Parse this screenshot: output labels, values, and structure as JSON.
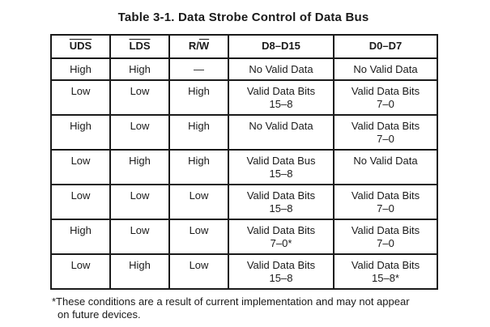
{
  "title": "Table 3-1. Data Strobe Control of Data Bus",
  "table": {
    "columns": [
      {
        "segments": [
          {
            "text": "UDS",
            "overline": true
          }
        ]
      },
      {
        "segments": [
          {
            "text": "LDS",
            "overline": true
          }
        ]
      },
      {
        "segments": [
          {
            "text": "R/",
            "overline": false
          },
          {
            "text": "W",
            "overline": true
          }
        ]
      },
      {
        "segments": [
          {
            "text": "D8–D15",
            "overline": false
          }
        ]
      },
      {
        "segments": [
          {
            "text": "D0–D7",
            "overline": false
          }
        ]
      }
    ],
    "rows": [
      {
        "cells": [
          [
            "High"
          ],
          [
            "High"
          ],
          [
            "—"
          ],
          [
            "No Valid Data"
          ],
          [
            "No Valid Data"
          ]
        ]
      },
      {
        "cells": [
          [
            "Low"
          ],
          [
            "Low"
          ],
          [
            "High"
          ],
          [
            "Valid Data Bits",
            "15–8"
          ],
          [
            "Valid Data Bits",
            "7–0"
          ]
        ]
      },
      {
        "cells": [
          [
            "High"
          ],
          [
            "Low"
          ],
          [
            "High"
          ],
          [
            "No Valid Data"
          ],
          [
            "Valid Data Bits",
            "7–0"
          ]
        ]
      },
      {
        "cells": [
          [
            "Low"
          ],
          [
            "High"
          ],
          [
            "High"
          ],
          [
            "Valid Data Bus",
            "15–8"
          ],
          [
            "No Valid Data"
          ]
        ]
      },
      {
        "cells": [
          [
            "Low"
          ],
          [
            "Low"
          ],
          [
            "Low"
          ],
          [
            "Valid Data Bits",
            "15–8"
          ],
          [
            "Valid Data Bits",
            "7–0"
          ]
        ]
      },
      {
        "cells": [
          [
            "High"
          ],
          [
            "Low"
          ],
          [
            "Low"
          ],
          [
            "Valid Data Bits",
            "7–0*"
          ],
          [
            "Valid Data Bits",
            "7–0"
          ]
        ]
      },
      {
        "cells": [
          [
            "Low"
          ],
          [
            "High"
          ],
          [
            "Low"
          ],
          [
            "Valid Data Bits",
            "15–8"
          ],
          [
            "Valid Data Bits",
            "15–8*"
          ]
        ]
      }
    ]
  },
  "footnote": {
    "line1": "*These conditions are a result of current implementation and may not appear",
    "line2": "on future devices."
  },
  "colors": {
    "text": "#1a1a1a",
    "border": "#1a1a1a",
    "background": "#ffffff"
  }
}
